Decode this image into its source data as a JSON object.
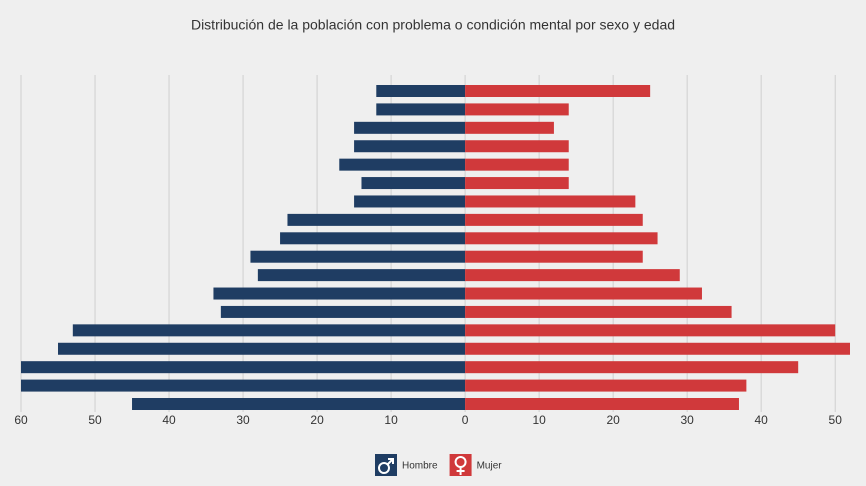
{
  "chart_data": {
    "type": "bar",
    "orientation": "horizontal",
    "stacking": "diverging",
    "title": "Distribución de la población con problema o condición mental por sexo y edad",
    "categories": [
      null,
      null,
      null,
      null,
      null,
      null,
      null,
      null,
      null,
      null,
      null,
      null,
      null,
      null,
      null,
      null,
      null,
      null
    ],
    "series": [
      {
        "name": "Hombre",
        "color": "#1f3d63",
        "values": [
          -12,
          -12,
          -15,
          -15,
          -17,
          -14,
          -15,
          -24,
          -25,
          -29,
          -28,
          -34,
          -33,
          -53,
          -55,
          -60,
          -60,
          -45
        ]
      },
      {
        "name": "Mujer",
        "color": "#d0393b",
        "values": [
          25,
          14,
          12,
          14,
          14,
          14,
          23,
          24,
          26,
          24,
          29,
          32,
          36,
          50,
          52,
          45,
          38,
          37
        ]
      }
    ],
    "xlim": [
      -60,
      52
    ],
    "xticks": [
      {
        "value": -60,
        "label": "60"
      },
      {
        "value": -50,
        "label": "50"
      },
      {
        "value": -40,
        "label": "40"
      },
      {
        "value": -30,
        "label": "30"
      },
      {
        "value": -20,
        "label": "20"
      },
      {
        "value": -10,
        "label": "10"
      },
      0,
      10,
      20,
      30,
      40,
      50
    ],
    "grid": true,
    "legend": "bottom"
  }
}
